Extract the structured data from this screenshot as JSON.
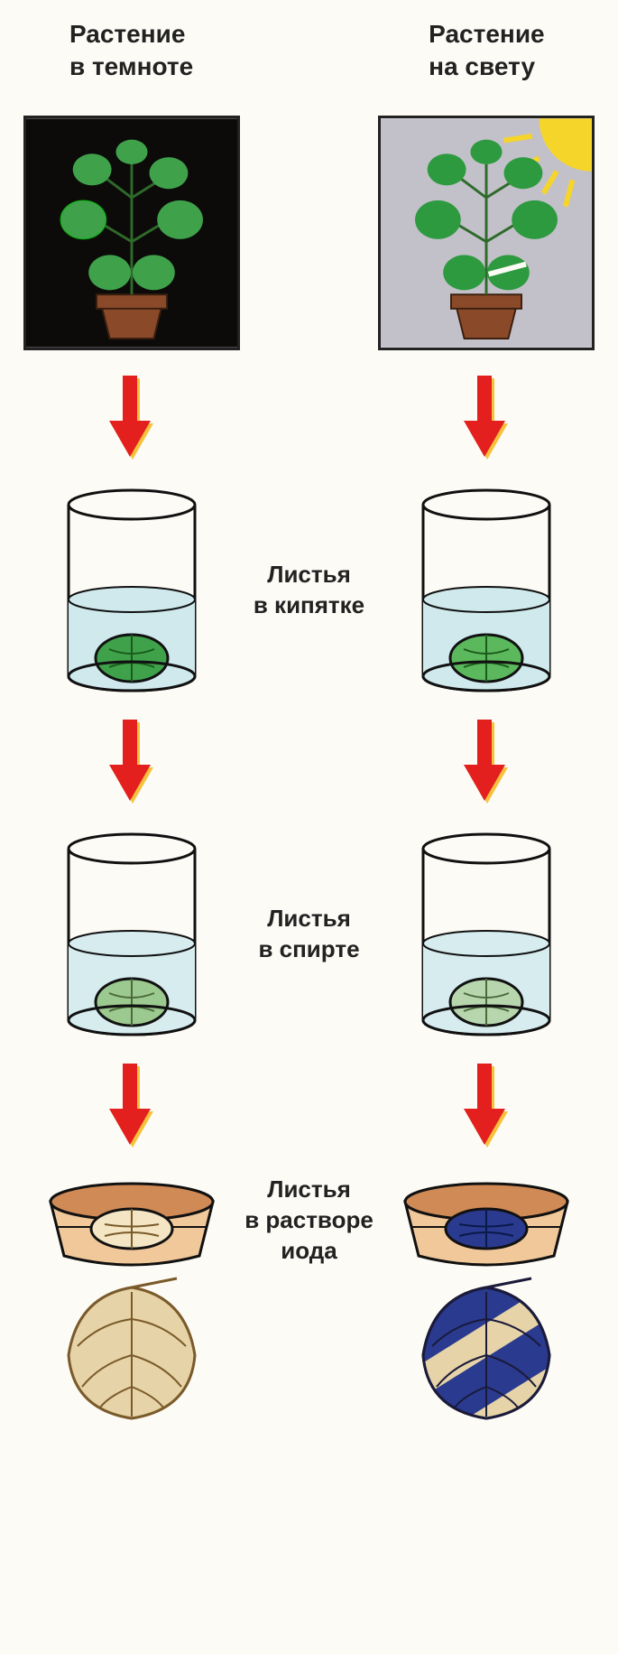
{
  "type": "infographic",
  "layout": "two-column-process-diagram",
  "background_color": "#fdfbf5",
  "text_color": "#222222",
  "header_fontsize": 28,
  "label_fontsize": 26,
  "arrow": {
    "fill": "#e4201e",
    "shadow": "#f7c23b",
    "width": 46,
    "height": 90
  },
  "columns": {
    "left": {
      "header": "Растение\nв темноте",
      "plant_box_bg": "#0c0b0a",
      "plant_box_border": "#222222",
      "leaf_color": "#3fa24b",
      "pot_color": "#8a4a2a",
      "has_sun": false
    },
    "right": {
      "header": "Растение\nна свету",
      "plant_box_bg": "#c2c0c9",
      "plant_box_border": "#222222",
      "leaf_color": "#2e9a3f",
      "pot_color": "#8a4a2a",
      "has_sun": true,
      "sun_color": "#f6d52a"
    }
  },
  "steps": [
    {
      "label": "Листья\nв кипятке",
      "vessel": "beaker",
      "liquid_color": "#cfe9ed",
      "leaf_left_color": "#3fa24b",
      "leaf_right_color": "#5cb85c",
      "outline": "#111111"
    },
    {
      "label": "Листья\nв спирте",
      "vessel": "beaker",
      "liquid_color": "#d6ecef",
      "leaf_left_color": "#9cc98f",
      "leaf_right_color": "#b7d6ae",
      "outline": "#111111"
    },
    {
      "label": "Листья\nв растворе\nиода",
      "vessel": "dish",
      "liquid_top": "#d08a56",
      "liquid_bottom": "#f0c89a",
      "leaf_left_color": "#f4e6c4",
      "leaf_right_color": "#2a3a8f",
      "outline": "#111111",
      "final_leaf_left": {
        "fill": "#e6d3a7",
        "veins": "#7a5a2a"
      },
      "final_leaf_right": {
        "fill_dark": "#2a3a8f",
        "fill_light": "#e6d3a7",
        "veins": "#1a1a3a"
      }
    }
  ]
}
